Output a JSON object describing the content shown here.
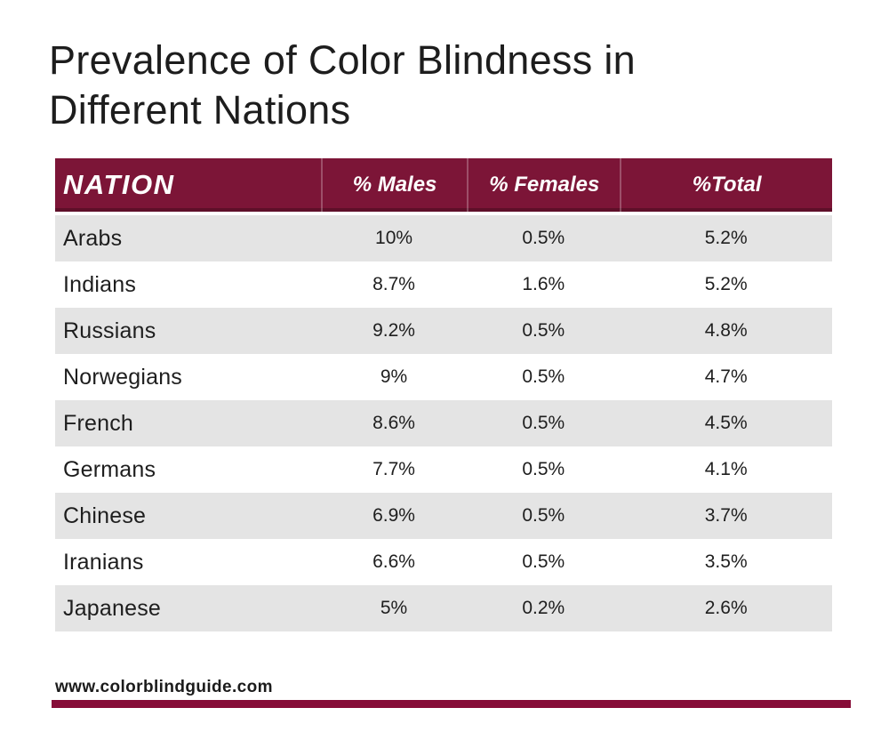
{
  "page": {
    "title": "Prevalence of Color Blindness in Different Nations",
    "footer_url": "www.colorblindguide.com"
  },
  "colors": {
    "header_bg": "#7c1537",
    "row_alt_bg": "#e4e4e4",
    "accent_bar": "#860d38",
    "header_text": "#ffffff",
    "body_text": "#1e1e1e"
  },
  "chart_data": {
    "type": "table",
    "title": "Prevalence of Color Blindness in Different Nations",
    "columns": [
      "NATION",
      "% Males",
      "% Females",
      "%Total"
    ],
    "rows": [
      {
        "nation": "Arabs",
        "males": "10%",
        "females": "0.5%",
        "total": "5.2%"
      },
      {
        "nation": "Indians",
        "males": "8.7%",
        "females": "1.6%",
        "total": "5.2%"
      },
      {
        "nation": "Russians",
        "males": "9.2%",
        "females": "0.5%",
        "total": "4.8%"
      },
      {
        "nation": "Norwegians",
        "males": "9%",
        "females": "0.5%",
        "total": "4.7%"
      },
      {
        "nation": "French",
        "males": "8.6%",
        "females": "0.5%",
        "total": "4.5%"
      },
      {
        "nation": "Germans",
        "males": "7.7%",
        "females": "0.5%",
        "total": "4.1%"
      },
      {
        "nation": "Chinese",
        "males": "6.9%",
        "females": "0.5%",
        "total": "3.7%"
      },
      {
        "nation": "Iranians",
        "males": "6.6%",
        "females": "0.5%",
        "total": "3.5%"
      },
      {
        "nation": "Japanese",
        "males": "5%",
        "females": "0.2%",
        "total": "2.6%"
      }
    ],
    "layout": {
      "zebra_striping": true,
      "first_row_shaded": true,
      "value_columns_centered": true
    }
  }
}
